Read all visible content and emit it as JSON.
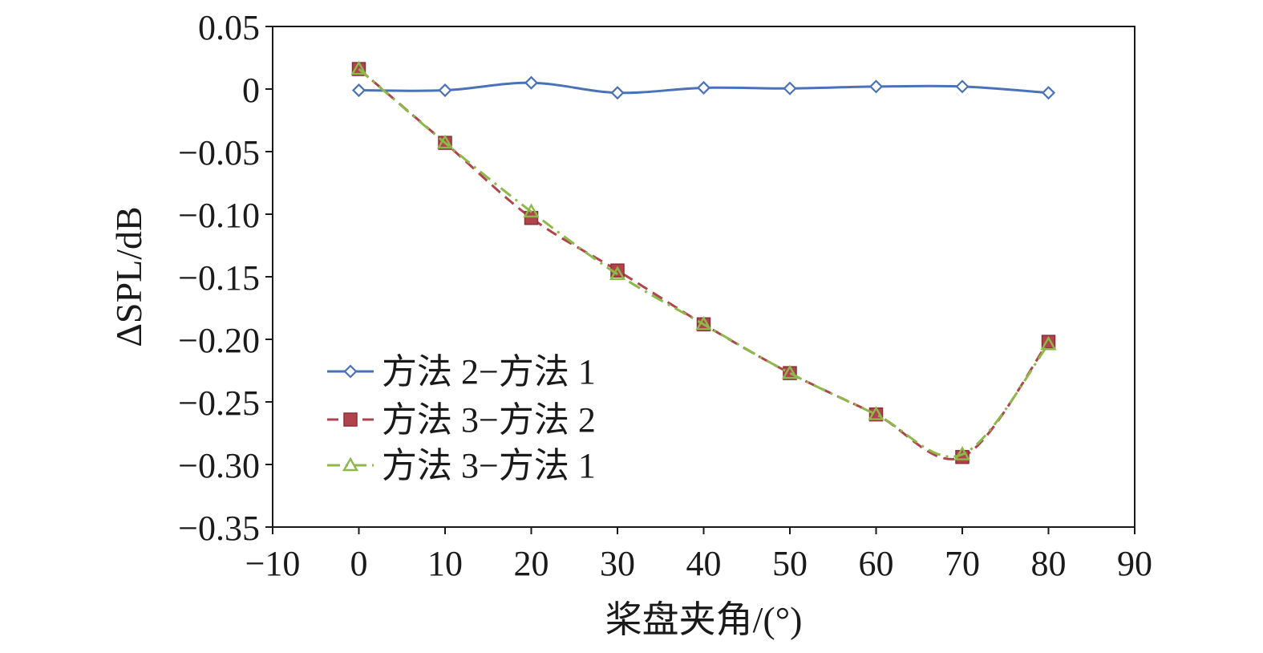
{
  "chart_data": {
    "type": "line",
    "title": "",
    "xlabel": "桨盘夹角/(°)",
    "ylabel": "ΔSPL/dB",
    "xlim": [
      -10,
      90
    ],
    "ylim": [
      -0.35,
      0.05
    ],
    "x_ticks": [
      -10,
      0,
      10,
      20,
      30,
      40,
      50,
      60,
      70,
      80,
      90
    ],
    "x_tick_labels": [
      "−10",
      "0",
      "10",
      "20",
      "30",
      "40",
      "50",
      "60",
      "70",
      "80",
      "90"
    ],
    "y_ticks": [
      0.05,
      0,
      -0.05,
      -0.1,
      -0.15,
      -0.2,
      -0.25,
      -0.3,
      -0.35
    ],
    "y_tick_labels": [
      "0.05",
      "0",
      "−0.05",
      "−0.10",
      "−0.15",
      "−0.20",
      "−0.25",
      "−0.30",
      "−0.35"
    ],
    "grid": false,
    "legend_position": "bottom-left",
    "x": [
      0,
      10,
      20,
      30,
      40,
      50,
      60,
      70,
      80
    ],
    "series": [
      {
        "name": "方法 2−方法 1",
        "color": "#4a72b8",
        "marker": "diamond",
        "line_style": "solid",
        "values": [
          -0.001,
          -0.001,
          0.005,
          -0.003,
          0.001,
          0.0005,
          0.002,
          0.002,
          -0.003
        ]
      },
      {
        "name": "方法 3−方法 2",
        "color": "#b0434c",
        "marker": "square",
        "line_style": "dashed",
        "values": [
          0.016,
          -0.043,
          -0.103,
          -0.145,
          -0.188,
          -0.227,
          -0.26,
          -0.294,
          -0.202
        ]
      },
      {
        "name": "方法 3−方法 1",
        "color": "#8db84a",
        "marker": "triangle",
        "line_style": "dashdot",
        "values": [
          0.016,
          -0.043,
          -0.098,
          -0.148,
          -0.188,
          -0.227,
          -0.26,
          -0.292,
          -0.204
        ]
      }
    ]
  }
}
